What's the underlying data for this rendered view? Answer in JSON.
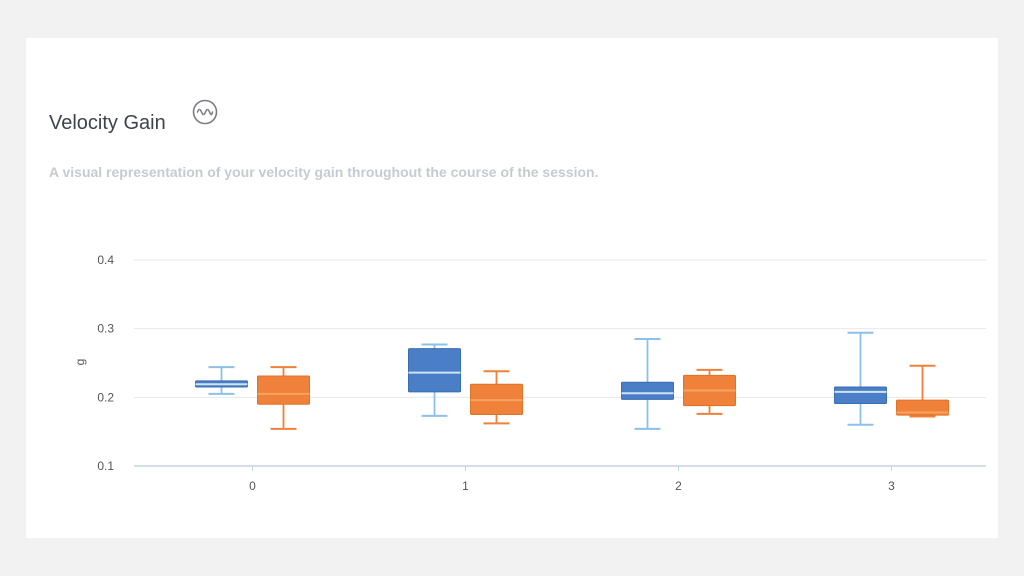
{
  "card": {
    "title": "Velocity Gain",
    "title_icon": "waveform-circle-icon",
    "subtitle": "A visual representation of your velocity gain throughout the course of the session."
  },
  "chart_data": {
    "type": "box",
    "categories": [
      "0",
      "1",
      "2",
      "3"
    ],
    "ylabel": "g",
    "xlabel": "",
    "ylim": [
      0.1,
      0.4
    ],
    "yticks": [
      "0.1",
      "0.2",
      "0.3",
      "0.4"
    ],
    "grid": true,
    "colors": {
      "blue": "#4a7ec6",
      "blue_whisker": "#8dc0e8",
      "orange": "#f0813a",
      "orange_median": "#f6a35f"
    },
    "series": [
      {
        "color_key": "blue",
        "boxes": [
          {
            "min": 0.205,
            "q1": 0.215,
            "median": 0.219,
            "q3": 0.224,
            "max": 0.244
          },
          {
            "min": 0.173,
            "q1": 0.208,
            "median": 0.236,
            "q3": 0.271,
            "max": 0.277
          },
          {
            "min": 0.154,
            "q1": 0.197,
            "median": 0.206,
            "q3": 0.222,
            "max": 0.285
          },
          {
            "min": 0.16,
            "q1": 0.191,
            "median": 0.208,
            "q3": 0.215,
            "max": 0.294
          }
        ]
      },
      {
        "color_key": "orange",
        "boxes": [
          {
            "min": 0.154,
            "q1": 0.19,
            "median": 0.205,
            "q3": 0.231,
            "max": 0.244
          },
          {
            "min": 0.162,
            "q1": 0.175,
            "median": 0.196,
            "q3": 0.219,
            "max": 0.238
          },
          {
            "min": 0.176,
            "q1": 0.188,
            "median": 0.21,
            "q3": 0.232,
            "max": 0.24
          },
          {
            "min": 0.172,
            "q1": 0.174,
            "median": 0.178,
            "q3": 0.196,
            "max": 0.246
          }
        ]
      }
    ]
  }
}
